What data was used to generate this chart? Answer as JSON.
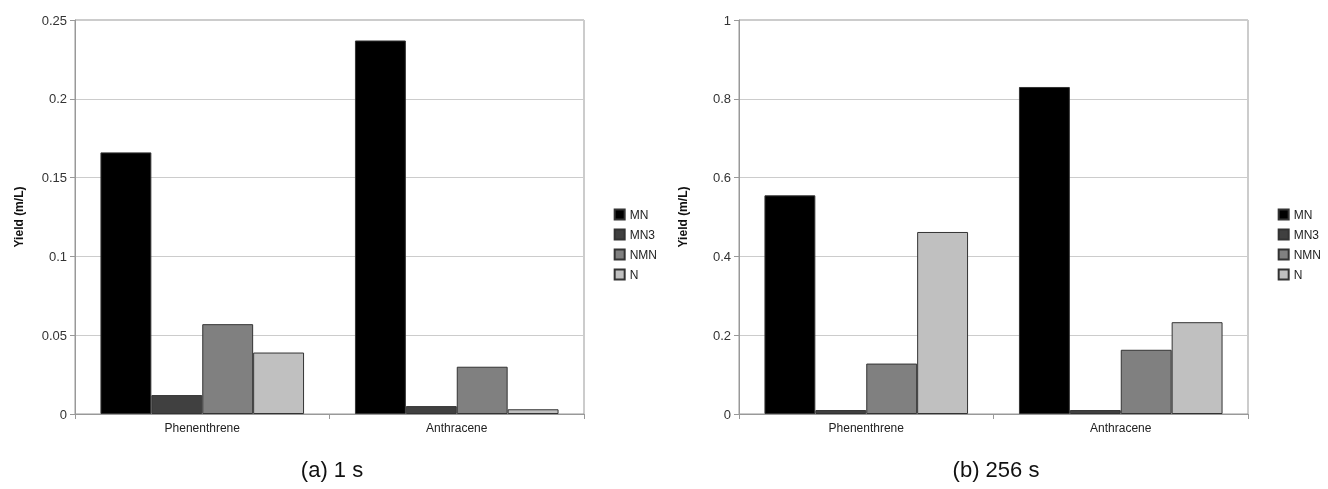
{
  "chart_data": [
    {
      "type": "bar",
      "title": "(a) 1 s",
      "ylabel": "Yield (m/L)",
      "categories": [
        "Phenenthrene",
        "Anthracene"
      ],
      "series": [
        {
          "name": "MN",
          "color": "#000000",
          "values": [
            0.166,
            0.237
          ]
        },
        {
          "name": "MN3",
          "color": "#404040",
          "values": [
            0.012,
            0.005
          ]
        },
        {
          "name": "NMN",
          "color": "#808080",
          "values": [
            0.057,
            0.03
          ]
        },
        {
          "name": "N",
          "color": "#c0c0c0",
          "values": [
            0.039,
            0.003
          ]
        }
      ],
      "ylim": [
        0,
        0.25
      ],
      "yticks": [
        0,
        0.05,
        0.1,
        0.15,
        0.2,
        0.25
      ],
      "grid": "y",
      "legend": "right"
    },
    {
      "type": "bar",
      "title": "(b) 256 s",
      "ylabel": "Yield (m/L)",
      "categories": [
        "Phenenthrene",
        "Anthracene"
      ],
      "series": [
        {
          "name": "MN",
          "color": "#000000",
          "values": [
            0.555,
            0.83
          ]
        },
        {
          "name": "MN3",
          "color": "#404040",
          "values": [
            0.01,
            0.01
          ]
        },
        {
          "name": "NMN",
          "color": "#808080",
          "values": [
            0.128,
            0.163
          ]
        },
        {
          "name": "N",
          "color": "#c0c0c0",
          "values": [
            0.462,
            0.233
          ]
        }
      ],
      "ylim": [
        0,
        1
      ],
      "yticks": [
        0,
        0.2,
        0.4,
        0.6,
        0.8,
        1
      ],
      "grid": "y",
      "legend": "right"
    }
  ]
}
